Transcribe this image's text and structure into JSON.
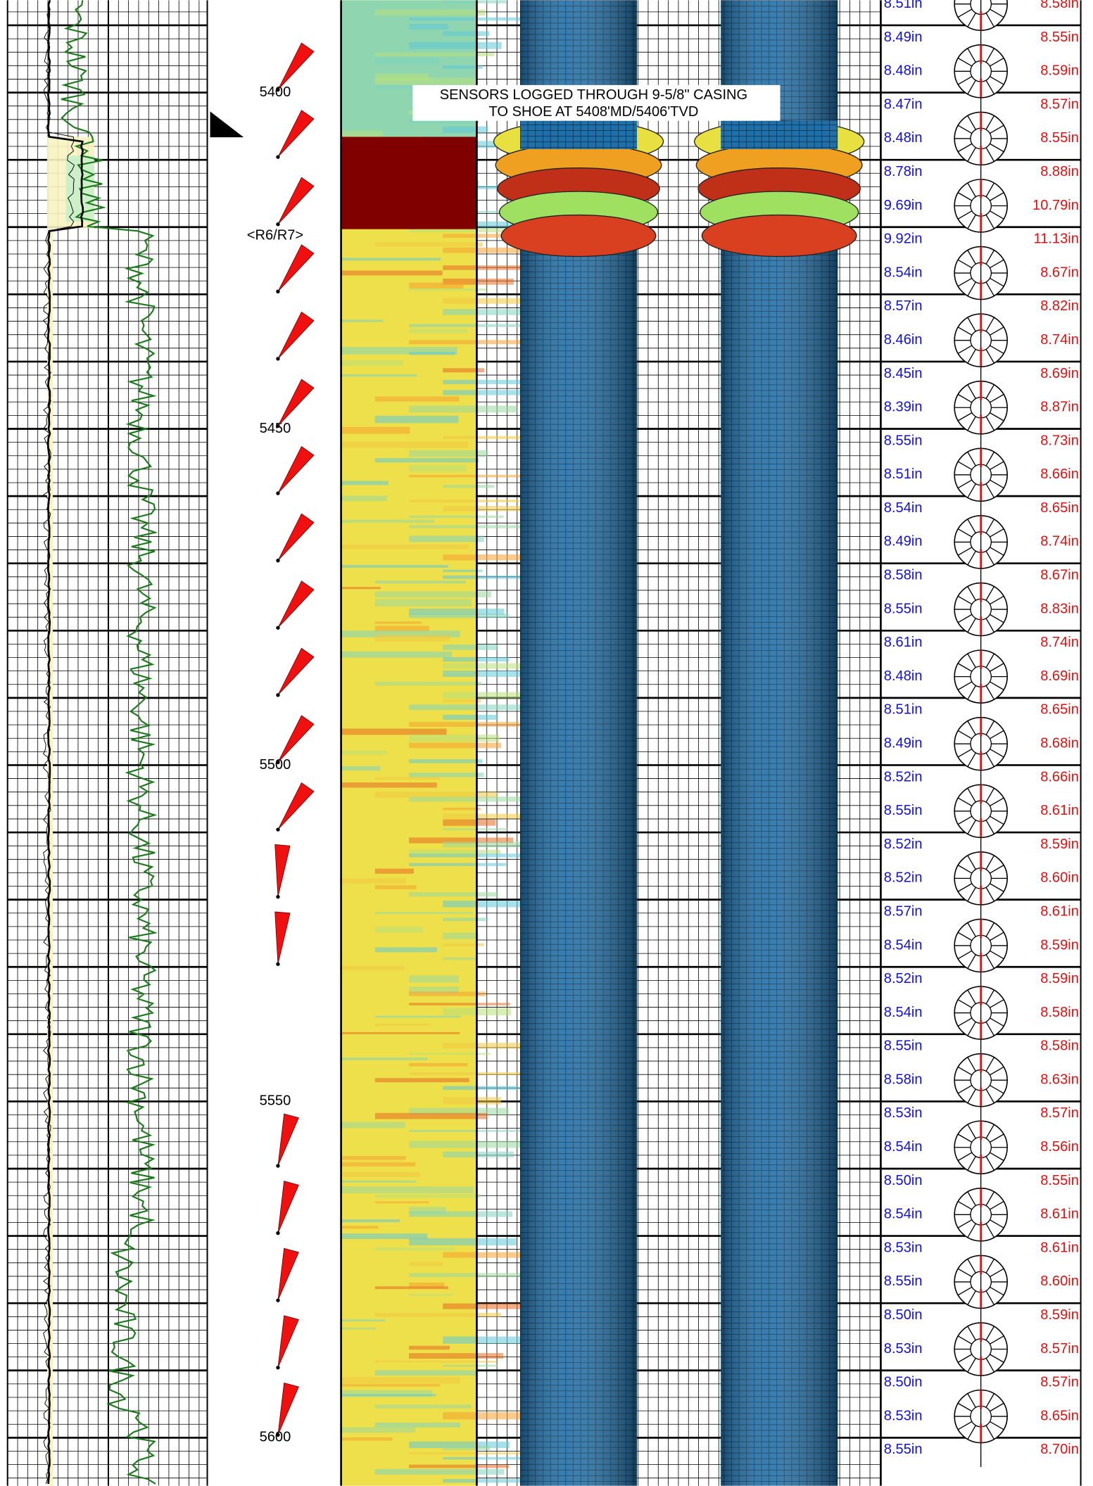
{
  "depth_labels": [
    "5400",
    "<R6/R7>",
    "5450",
    "5500",
    "5550",
    "5600"
  ],
  "annotation": [
    "SENSORS LOGGED THROUGH 9-5/8\" CASING",
    "TO SHOE AT 5408'MD/5406'TVD"
  ],
  "calipers": {
    "min": [
      "8.51in",
      "8.49in",
      "8.48in",
      "8.47in",
      "8.48in",
      "8.78in",
      "9.69in",
      "9.92in",
      "8.54in",
      "8.57in",
      "8.46in",
      "8.45in",
      "8.39in",
      "8.55in",
      "8.51in",
      "8.54in",
      "8.49in",
      "8.58in",
      "8.55in",
      "8.61in",
      "8.48in",
      "8.51in",
      "8.49in",
      "8.52in",
      "8.55in",
      "8.52in",
      "8.52in",
      "8.57in",
      "8.54in",
      "8.52in",
      "8.54in",
      "8.55in",
      "8.58in",
      "8.53in",
      "8.54in",
      "8.50in",
      "8.54in",
      "8.53in",
      "8.55in",
      "8.50in",
      "8.53in",
      "8.50in",
      "8.53in",
      "8.55in"
    ],
    "max": [
      "8.58in",
      "8.55in",
      "8.59in",
      "8.57in",
      "8.55in",
      "8.88in",
      "10.79in",
      "11.13in",
      "8.67in",
      "8.82in",
      "8.74in",
      "8.69in",
      "8.87in",
      "8.73in",
      "8.66in",
      "8.65in",
      "8.74in",
      "8.67in",
      "8.83in",
      "8.74in",
      "8.69in",
      "8.65in",
      "8.68in",
      "8.66in",
      "8.61in",
      "8.59in",
      "8.60in",
      "8.61in",
      "8.59in",
      "8.59in",
      "8.58in",
      "8.58in",
      "8.63in",
      "8.57in",
      "8.56in",
      "8.55in",
      "8.61in",
      "8.61in",
      "8.60in",
      "8.59in",
      "8.57in",
      "8.57in",
      "8.65in",
      "8.70in"
    ]
  }
}
